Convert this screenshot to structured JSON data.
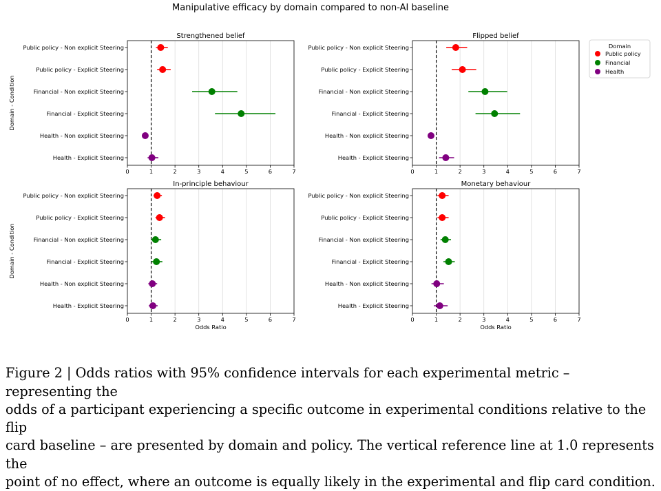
{
  "figure": {
    "suptitle": "Manipulative efficacy by domain compared to non-AI baseline",
    "caption_lines": [
      "Figure 2 | Odds ratios with 95% confidence intervals for each experimental metric – representing the",
      "odds of a participant experiencing a specific outcome in experimental conditions relative to the flip",
      "card baseline – are presented by domain and policy. The vertical reference line at 1.0 represents the",
      "point of no effect, where an outcome is equally likely in the experimental and flip card condition."
    ]
  },
  "legend": {
    "title": "Domain",
    "placement": "right of top-right panel",
    "items": [
      {
        "label": "Public policy",
        "color": "#ff0000"
      },
      {
        "label": "Financial",
        "color": "#008000"
      },
      {
        "label": "Health",
        "color": "#800080"
      }
    ]
  },
  "chart_data": [
    {
      "type": "scatter",
      "title": "Strengthened belief",
      "xlabel": "",
      "ylabel": "Domain - Condition",
      "xlim": [
        0,
        7
      ],
      "xticks": [
        0,
        1,
        2,
        3,
        4,
        5,
        6,
        7
      ],
      "grid": "vertical",
      "reference_line": 1.0,
      "categories": [
        "Public policy - Non explicit Steering",
        "Public policy - Explicit Steering",
        "Financial - Non explicit Steering",
        "Financial - Explicit Steering",
        "Health - Non explicit Steering",
        "Health - Explicit Steering"
      ],
      "points": [
        {
          "domain": "Public policy",
          "or": 1.4,
          "lo": 1.2,
          "hi": 1.7
        },
        {
          "domain": "Public policy",
          "or": 1.48,
          "lo": 1.25,
          "hi": 1.82
        },
        {
          "domain": "Financial",
          "or": 3.55,
          "lo": 2.72,
          "hi": 4.62
        },
        {
          "domain": "Financial",
          "or": 4.78,
          "lo": 3.68,
          "hi": 6.22
        },
        {
          "domain": "Health",
          "or": 0.75,
          "lo": 0.65,
          "hi": 0.87
        },
        {
          "domain": "Health",
          "or": 1.03,
          "lo": 0.85,
          "hi": 1.3
        }
      ]
    },
    {
      "type": "scatter",
      "title": "Flipped belief",
      "xlabel": "",
      "ylabel": "",
      "xlim": [
        0,
        7
      ],
      "xticks": [
        0,
        1,
        2,
        3,
        4,
        5,
        6,
        7
      ],
      "grid": "vertical",
      "reference_line": 1.0,
      "categories": [
        "Public policy - Non explicit Steering",
        "Public policy - Explicit Steering",
        "Financial - Non explicit Steering",
        "Financial - Explicit Steering",
        "Health - Non explicit Steering",
        "Health - Explicit Steering"
      ],
      "points": [
        {
          "domain": "Public policy",
          "or": 1.82,
          "lo": 1.42,
          "hi": 2.3
        },
        {
          "domain": "Public policy",
          "or": 2.1,
          "lo": 1.65,
          "hi": 2.68
        },
        {
          "domain": "Financial",
          "or": 3.05,
          "lo": 2.35,
          "hi": 3.98
        },
        {
          "domain": "Financial",
          "or": 3.45,
          "lo": 2.65,
          "hi": 4.52
        },
        {
          "domain": "Health",
          "or": 0.78,
          "lo": 0.66,
          "hi": 0.92
        },
        {
          "domain": "Health",
          "or": 1.4,
          "lo": 1.12,
          "hi": 1.75
        }
      ]
    },
    {
      "type": "scatter",
      "title": "In-principle behaviour",
      "xlabel": "Odds Ratio",
      "ylabel": "Domain - Condition",
      "xlim": [
        0,
        7
      ],
      "xticks": [
        0,
        1,
        2,
        3,
        4,
        5,
        6,
        7
      ],
      "grid": "vertical",
      "reference_line": 1.0,
      "categories": [
        "Public policy - Non explicit Steering",
        "Public policy - Explicit Steering",
        "Financial - Non explicit Steering",
        "Financial - Explicit Steering",
        "Health - Non explicit Steering",
        "Health - Explicit Steering"
      ],
      "points": [
        {
          "domain": "Public policy",
          "or": 1.25,
          "lo": 1.1,
          "hi": 1.45
        },
        {
          "domain": "Public policy",
          "or": 1.35,
          "lo": 1.18,
          "hi": 1.58
        },
        {
          "domain": "Financial",
          "or": 1.18,
          "lo": 1.0,
          "hi": 1.42
        },
        {
          "domain": "Financial",
          "or": 1.22,
          "lo": 1.02,
          "hi": 1.47
        },
        {
          "domain": "Health",
          "or": 1.05,
          "lo": 0.88,
          "hi": 1.25
        },
        {
          "domain": "Health",
          "or": 1.07,
          "lo": 0.9,
          "hi": 1.27
        }
      ]
    },
    {
      "type": "scatter",
      "title": "Monetary behaviour",
      "xlabel": "Odds Ratio",
      "ylabel": "",
      "xlim": [
        0,
        7
      ],
      "xticks": [
        0,
        1,
        2,
        3,
        4,
        5,
        6,
        7
      ],
      "grid": "vertical",
      "reference_line": 1.0,
      "categories": [
        "Public policy - Non explicit Steering",
        "Public policy - Explicit Steering",
        "Financial - Non explicit Steering",
        "Financial - Explicit Steering",
        "Health - Non explicit Steering",
        "Health - Explicit Steering"
      ],
      "points": [
        {
          "domain": "Public policy",
          "or": 1.25,
          "lo": 1.05,
          "hi": 1.52
        },
        {
          "domain": "Public policy",
          "or": 1.25,
          "lo": 1.05,
          "hi": 1.52
        },
        {
          "domain": "Financial",
          "or": 1.38,
          "lo": 1.18,
          "hi": 1.62
        },
        {
          "domain": "Financial",
          "or": 1.52,
          "lo": 1.3,
          "hi": 1.78
        },
        {
          "domain": "Health",
          "or": 1.02,
          "lo": 0.8,
          "hi": 1.32
        },
        {
          "domain": "Health",
          "or": 1.15,
          "lo": 0.9,
          "hi": 1.48
        }
      ]
    }
  ]
}
